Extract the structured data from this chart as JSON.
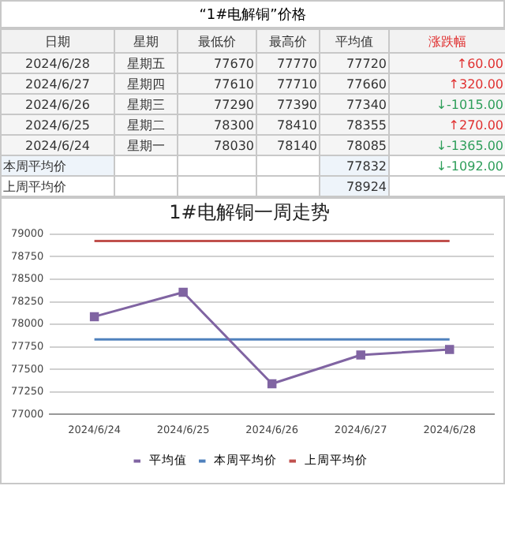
{
  "chart_data": [
    {
      "type": "other",
      "title": "“1#电解铜”价格",
      "annotations": [
        "日期",
        "星期",
        "最低价",
        "最高价",
        "平均值",
        "涨跌幅",
        "2024/6/28",
        "星期五",
        "77670",
        "77770",
        "77720",
        "↑60.00",
        "2024/6/27",
        "星期四",
        "77610",
        "77710",
        "77660",
        "↑320.00",
        "2024/6/26",
        "星期三",
        "77290",
        "77390",
        "77340",
        "↓-1015.00",
        "2024/6/25",
        "星期二",
        "78300",
        "78410",
        "78355",
        "↑270.00",
        "2024/6/24",
        "星期一",
        "78030",
        "78140",
        "78085",
        "↓-1365.00",
        "本周平均价",
        "77832",
        "↓-1092.00",
        "上周平均价",
        "78924"
      ]
    },
    {
      "type": "line",
      "title": "1#电解铜一周走势",
      "categories": [
        "2024/6/24",
        "2024/6/25",
        "2024/6/26",
        "2024/6/27",
        "2024/6/28"
      ],
      "series": [
        {
          "name": "平均值",
          "color": "#8064a2",
          "marker": "square",
          "values": [
            78085,
            78355,
            77340,
            77660,
            77720
          ]
        },
        {
          "name": "本周平均价",
          "color": "#4f81bd",
          "marker": "none",
          "values": [
            77832,
            77832,
            77832,
            77832,
            77832
          ]
        },
        {
          "name": "上周平均价",
          "color": "#c0504d",
          "marker": "none",
          "values": [
            78924,
            78924,
            78924,
            78924,
            78924
          ]
        }
      ],
      "ylim": [
        77000,
        79000
      ],
      "yticks": [
        77000,
        77250,
        77500,
        77750,
        78000,
        78250,
        78500,
        78750,
        79000
      ],
      "grid": "y",
      "legend": "bottom"
    }
  ]
}
